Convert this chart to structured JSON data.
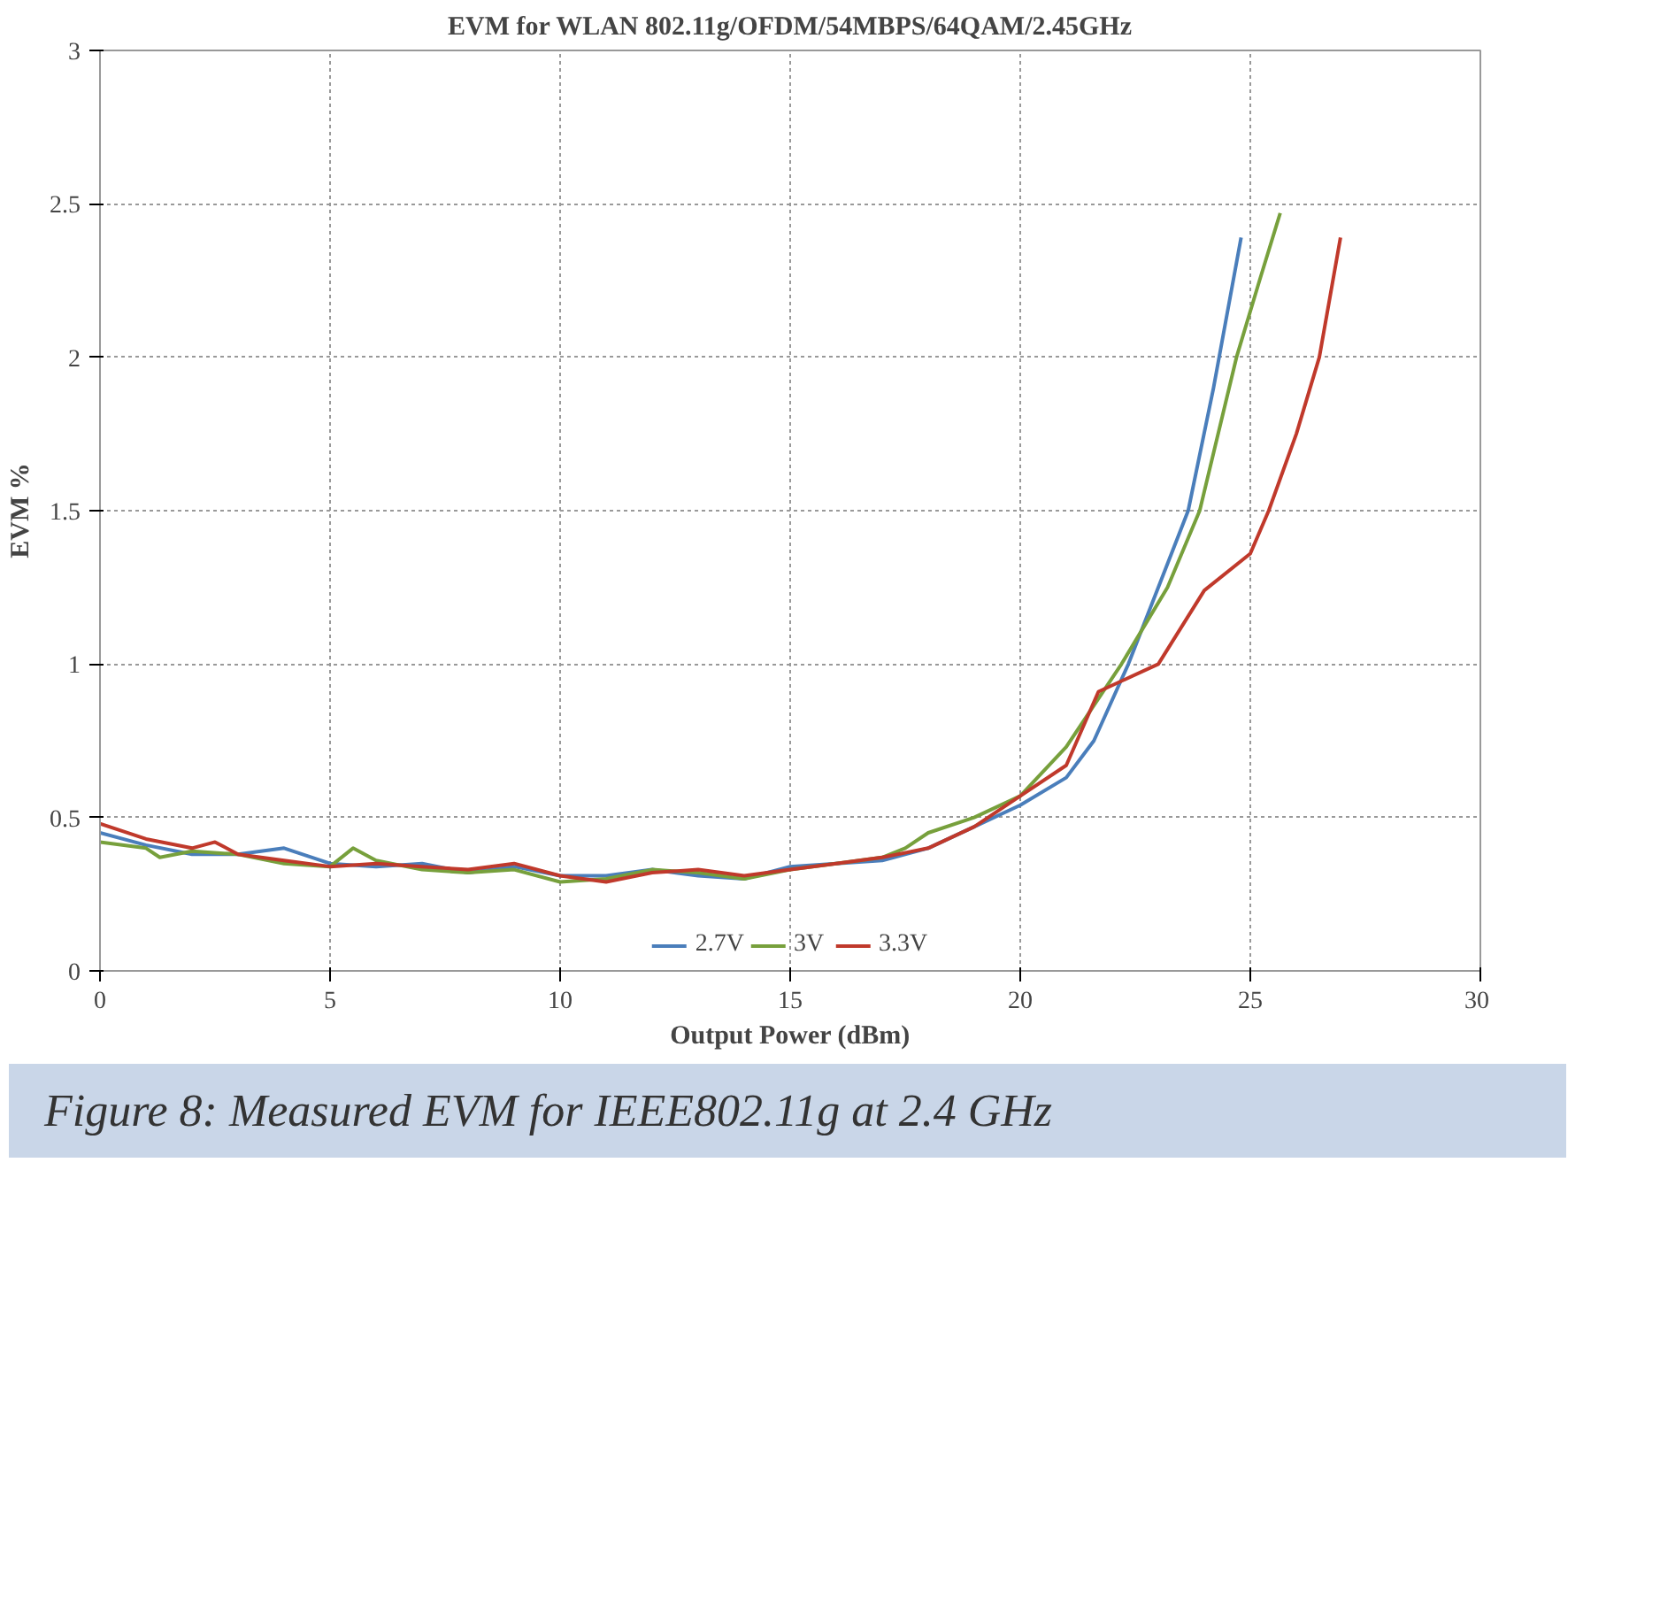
{
  "chart_data": {
    "type": "line",
    "title": "EVM for WLAN 802.11g/OFDM/54MBPS/64QAM/2.45GHz",
    "xlabel": "Output Power (dBm)",
    "ylabel": "EVM %",
    "xlim": [
      0,
      30
    ],
    "xticks": [
      0,
      5,
      10,
      15,
      20,
      25,
      30
    ],
    "ylim": [
      0,
      3
    ],
    "yticks": [
      0,
      0.5,
      1,
      1.5,
      2,
      2.5,
      3
    ],
    "grid": true,
    "legend": "bottom",
    "annotations": [
      "Figure 8: Measured EVM for IEEE802.11g at 2.4 GHz"
    ],
    "series": [
      {
        "name": "2.7V",
        "color": "#4a7ebb",
        "x": [
          0,
          1,
          2,
          3,
          4,
          5,
          6,
          7,
          8,
          9,
          10,
          11,
          12,
          13,
          14,
          15,
          16,
          17,
          18,
          19,
          20,
          21,
          21.6,
          22.35,
          23,
          23.65,
          24.2,
          24.8
        ],
        "values": [
          0.45,
          0.41,
          0.38,
          0.38,
          0.4,
          0.35,
          0.34,
          0.35,
          0.32,
          0.34,
          0.31,
          0.31,
          0.33,
          0.31,
          0.3,
          0.34,
          0.35,
          0.36,
          0.4,
          0.47,
          0.54,
          0.63,
          0.75,
          1.0,
          1.25,
          1.5,
          1.9,
          2.39
        ]
      },
      {
        "name": "3V",
        "color": "#77a03c",
        "x": [
          0,
          1,
          1.3,
          2,
          3,
          4,
          5,
          5.5,
          6,
          7,
          8,
          9,
          10,
          11,
          12,
          13,
          14,
          15,
          16,
          17,
          17.5,
          18,
          19,
          20,
          21,
          22.2,
          23.2,
          23.9,
          24.7,
          25.2,
          25.65
        ],
        "values": [
          0.42,
          0.4,
          0.37,
          0.39,
          0.38,
          0.35,
          0.34,
          0.4,
          0.36,
          0.33,
          0.32,
          0.33,
          0.29,
          0.3,
          0.33,
          0.32,
          0.3,
          0.33,
          0.35,
          0.37,
          0.4,
          0.45,
          0.5,
          0.57,
          0.73,
          1.0,
          1.25,
          1.5,
          2.0,
          2.25,
          2.47
        ]
      },
      {
        "name": "3.3V",
        "color": "#c0392b",
        "x": [
          0,
          1,
          2,
          2.5,
          3,
          4,
          5,
          6,
          7,
          8,
          9,
          10,
          11,
          12,
          13,
          14,
          15,
          16,
          17,
          18,
          19,
          20,
          21,
          21.7,
          23,
          24,
          25,
          25.4,
          26,
          26.5,
          26.96
        ],
        "values": [
          0.48,
          0.43,
          0.4,
          0.42,
          0.38,
          0.36,
          0.34,
          0.35,
          0.34,
          0.33,
          0.35,
          0.31,
          0.29,
          0.32,
          0.33,
          0.31,
          0.33,
          0.35,
          0.37,
          0.4,
          0.47,
          0.57,
          0.67,
          0.91,
          1.0,
          1.24,
          1.36,
          1.5,
          1.75,
          2.0,
          2.39
        ]
      }
    ]
  }
}
